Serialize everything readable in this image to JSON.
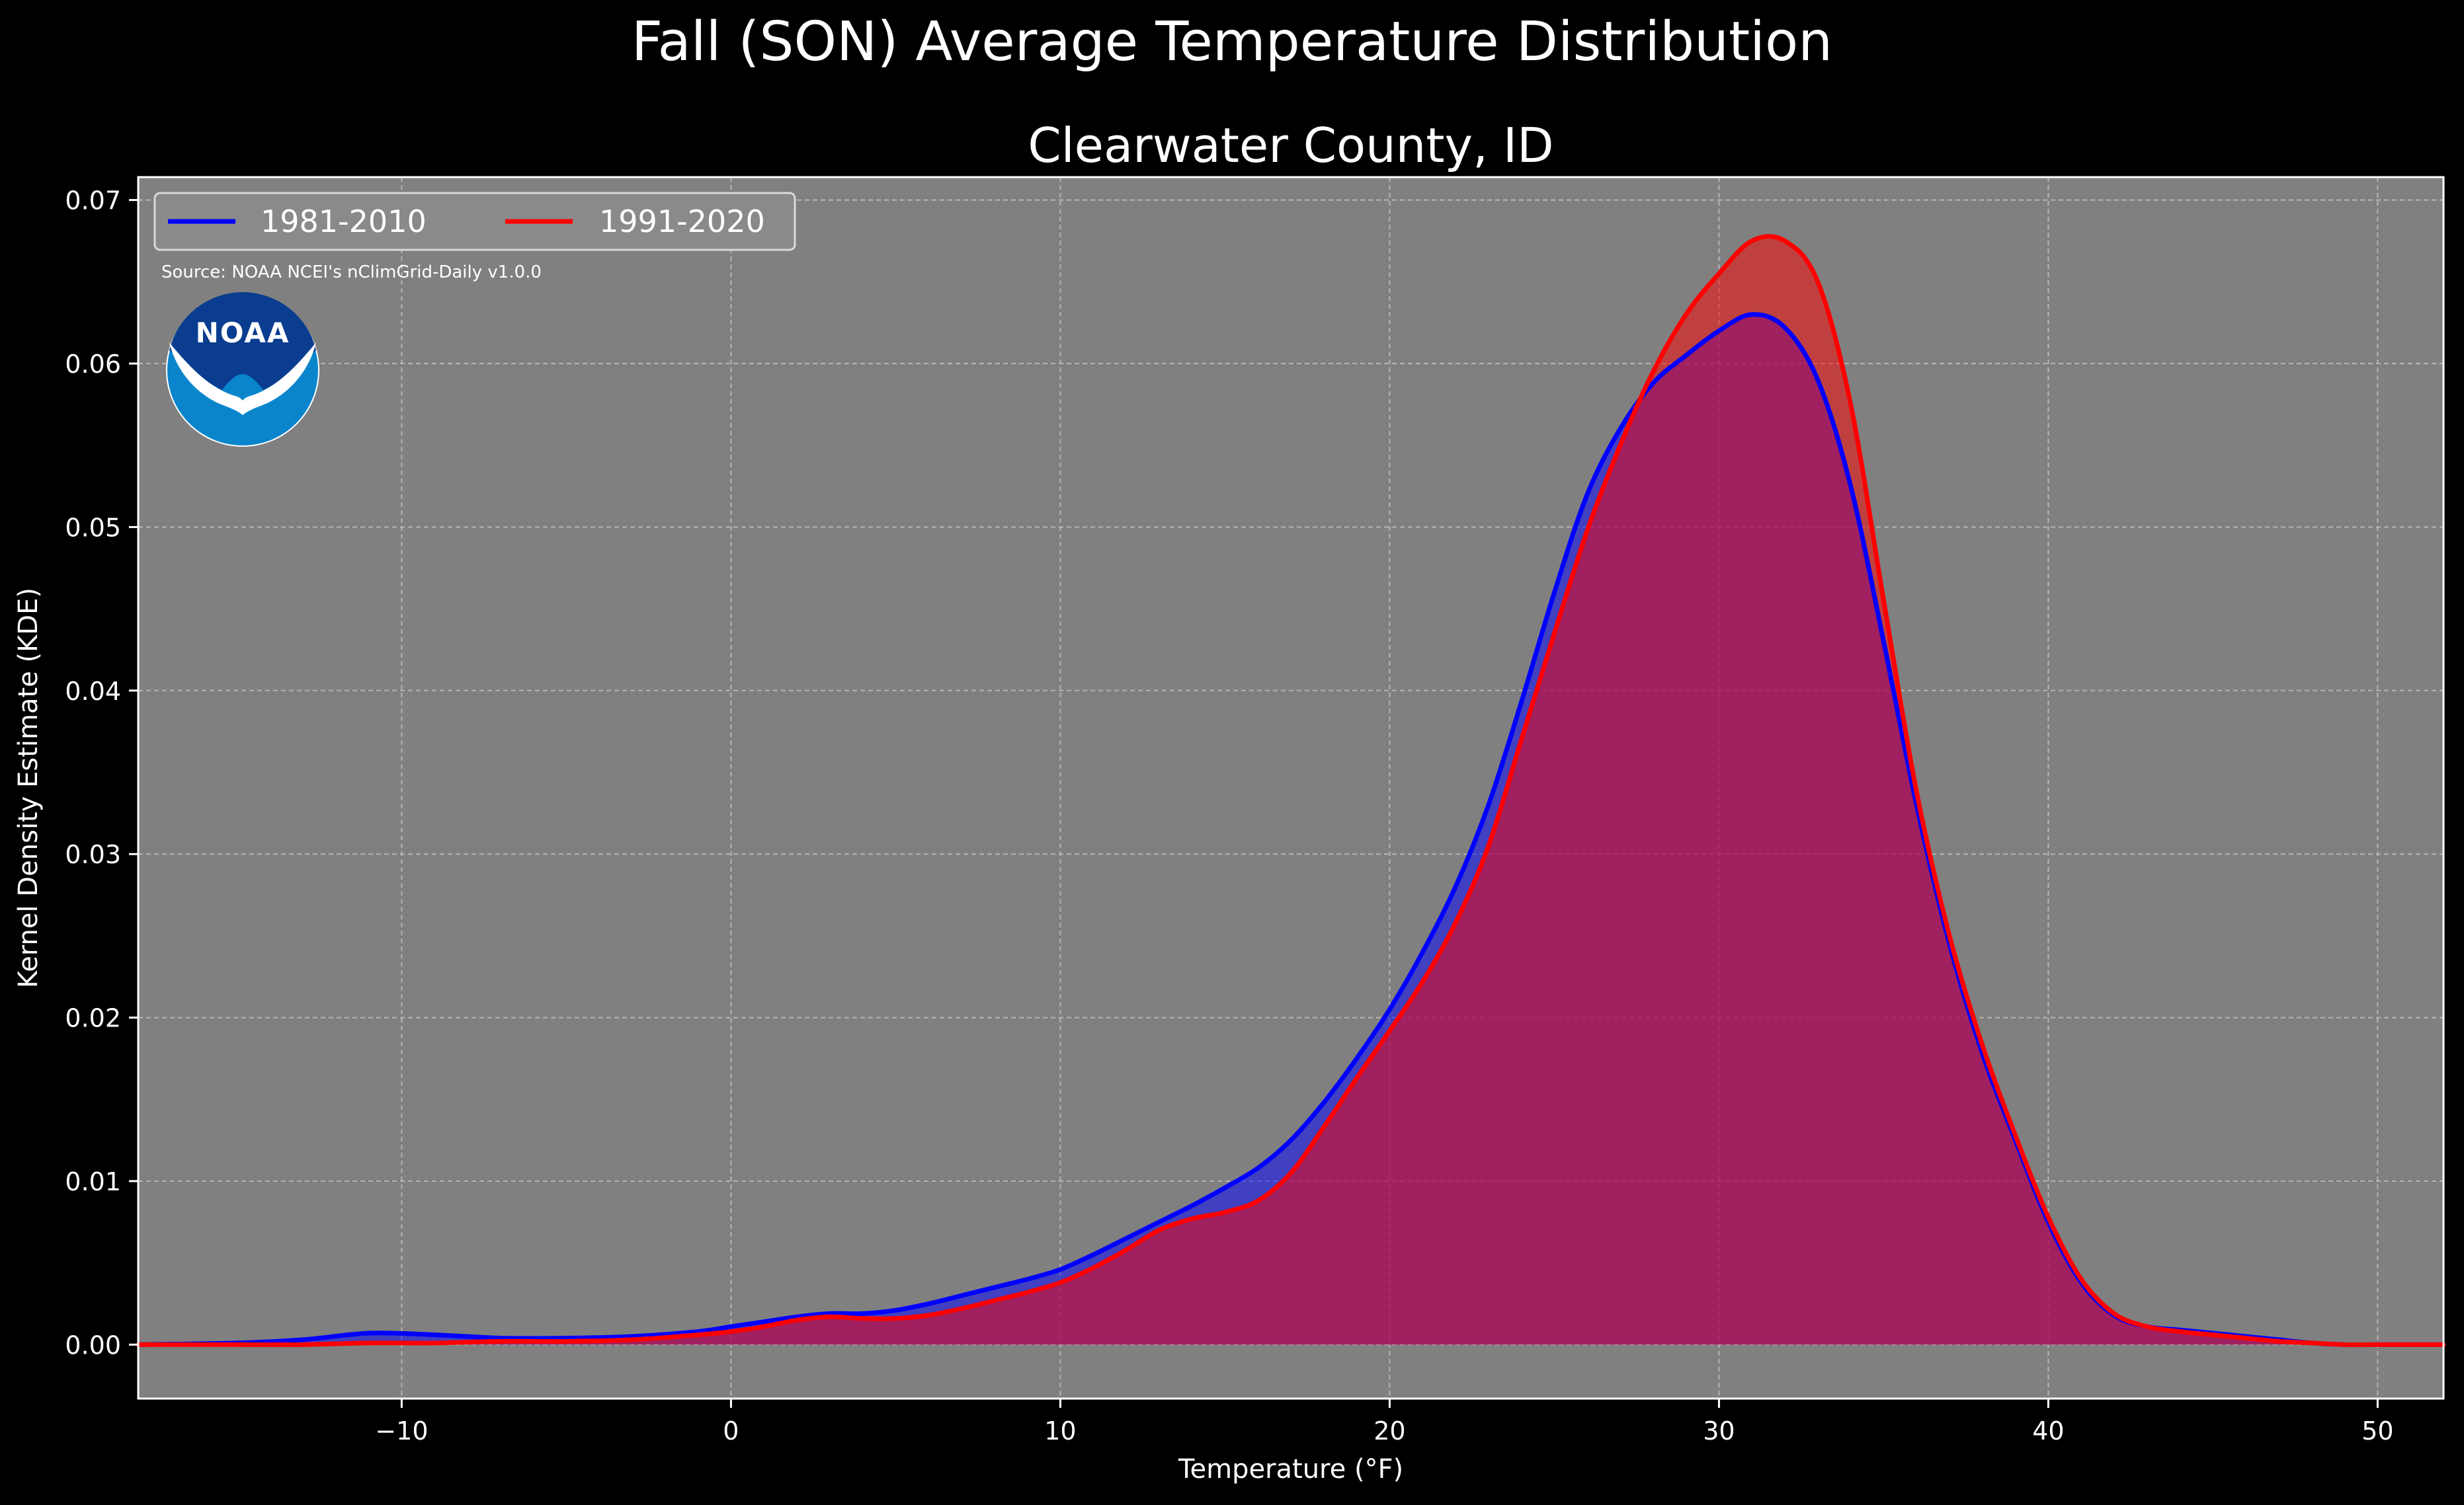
{
  "figure": {
    "suptitle": "Fall (SON) Average Temperature Distribution"
  },
  "colors": {
    "figure_background": "#000000",
    "axes_background": "#808080",
    "series_1": "#0000ff",
    "series_2": "#ff0000",
    "text": "#ffffff",
    "noaa_dark_blue": "#0a3d8f",
    "noaa_light_blue": "#0a85cc"
  },
  "legend": {
    "source_note": "Source: NOAA NCEI's nClimGrid-Daily v1.0.0",
    "logo_text": "NOAA",
    "placement": "upper left",
    "ncol": 2
  },
  "chart_data": {
    "type": "area",
    "title": "Clearwater County, ID",
    "xlabel": "Temperature (°F)",
    "ylabel": "Kernel Density Estimate (KDE)",
    "xlim": [
      -18,
      52
    ],
    "ylim": [
      -0.0033,
      0.0714
    ],
    "xticks": [
      -10,
      0,
      10,
      20,
      30,
      40,
      50
    ],
    "xtick_labels": [
      "−10",
      "0",
      "10",
      "20",
      "30",
      "40",
      "50"
    ],
    "yticks": [
      0.0,
      0.01,
      0.02,
      0.03,
      0.04,
      0.05,
      0.06,
      0.07
    ],
    "ytick_labels": [
      "0.00",
      "0.01",
      "0.02",
      "0.03",
      "0.04",
      "0.05",
      "0.06",
      "0.07"
    ],
    "grid": true,
    "legend_position": "top-left",
    "series": [
      {
        "name": "1981-2010",
        "color": "#0000ff",
        "x": [
          -18,
          -15,
          -13,
          -11,
          -9,
          -7,
          -5,
          -3,
          -1,
          0,
          1,
          2,
          3,
          4,
          5,
          6,
          7,
          8,
          9,
          10,
          11,
          12,
          13,
          14,
          15,
          16,
          17,
          18,
          19,
          20,
          21,
          22,
          23,
          24,
          25,
          26,
          27,
          28,
          29,
          30,
          31,
          32,
          33,
          34,
          35,
          36,
          37,
          38,
          39,
          40,
          41,
          42,
          43,
          44,
          45,
          46,
          47,
          48,
          49,
          50,
          52
        ],
        "y": [
          0.0,
          0.0001,
          0.0003,
          0.0007,
          0.0006,
          0.0004,
          0.0004,
          0.0005,
          0.0008,
          0.0011,
          0.0014,
          0.0017,
          0.0019,
          0.0019,
          0.0021,
          0.0025,
          0.003,
          0.0035,
          0.004,
          0.0046,
          0.0055,
          0.0065,
          0.0075,
          0.0085,
          0.0096,
          0.0108,
          0.0125,
          0.0148,
          0.0175,
          0.0205,
          0.024,
          0.028,
          0.033,
          0.0393,
          0.046,
          0.052,
          0.056,
          0.0588,
          0.0605,
          0.062,
          0.063,
          0.0622,
          0.059,
          0.0525,
          0.043,
          0.033,
          0.0245,
          0.0178,
          0.0125,
          0.0075,
          0.0038,
          0.0018,
          0.0011,
          0.0009,
          0.0007,
          0.0005,
          0.0003,
          0.0001,
          0.0,
          0.0,
          0.0
        ]
      },
      {
        "name": "1991-2020",
        "color": "#ff0000",
        "x": [
          -18,
          -15,
          -13,
          -11,
          -9,
          -7,
          -5,
          -3,
          -1,
          0,
          1,
          2,
          3,
          4,
          5,
          6,
          7,
          8,
          9,
          10,
          11,
          12,
          13,
          14,
          15,
          16,
          17,
          18,
          19,
          20,
          21,
          22,
          23,
          24,
          25,
          26,
          27,
          28,
          29,
          30,
          31,
          32,
          33,
          34,
          35,
          36,
          37,
          38,
          39,
          40,
          41,
          42,
          43,
          44,
          45,
          46,
          47,
          48,
          49,
          50,
          52
        ],
        "y": [
          0.0,
          0.0,
          0.0,
          0.0001,
          0.0001,
          0.0002,
          0.0002,
          0.0003,
          0.0006,
          0.0008,
          0.0011,
          0.0015,
          0.0017,
          0.0016,
          0.0016,
          0.0018,
          0.0022,
          0.0027,
          0.0032,
          0.0038,
          0.0047,
          0.0058,
          0.007,
          0.0077,
          0.0081,
          0.0088,
          0.0105,
          0.0133,
          0.0163,
          0.0192,
          0.0222,
          0.0258,
          0.0305,
          0.037,
          0.0435,
          0.0498,
          0.055,
          0.0595,
          0.063,
          0.0655,
          0.0675,
          0.0675,
          0.065,
          0.0575,
          0.0455,
          0.0338,
          0.025,
          0.0183,
          0.0128,
          0.0078,
          0.004,
          0.0019,
          0.0011,
          0.0008,
          0.0006,
          0.0004,
          0.0002,
          0.0001,
          0.0,
          0.0,
          0.0
        ]
      }
    ]
  }
}
